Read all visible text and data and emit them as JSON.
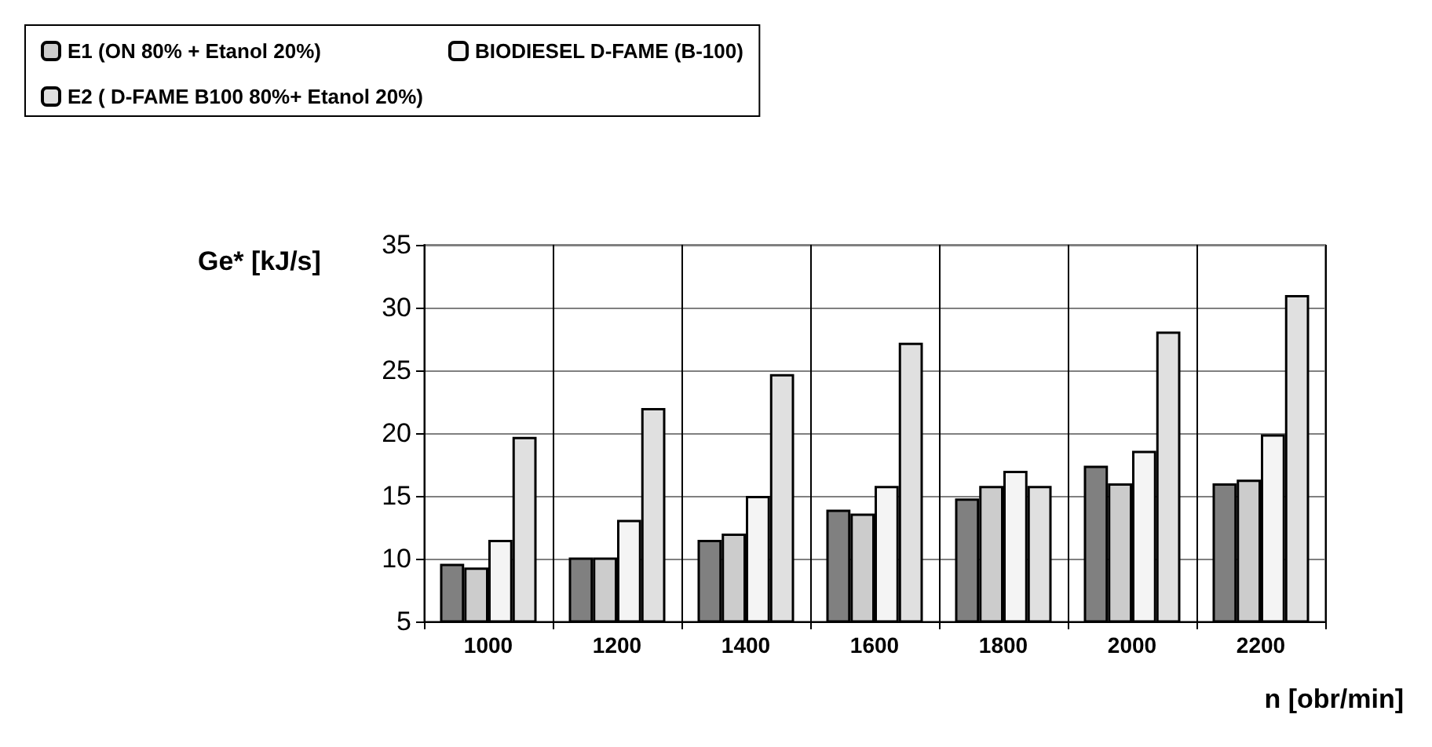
{
  "chart_data": {
    "type": "bar",
    "ylabel": "Ge* [kJ/s]",
    "xlabel": "n [obr/min]",
    "categories": [
      "1000",
      "1200",
      "1400",
      "1600",
      "1800",
      "2000",
      "2200"
    ],
    "series": [
      {
        "color": "#808080",
        "values": [
          9.6,
          10.1,
          11.5,
          13.9,
          14.8,
          17.4,
          16.0
        ]
      },
      {
        "name": "E1 (ON 80% + Etanol 20%)",
        "color": "#cccccc",
        "values": [
          9.3,
          10.1,
          12.0,
          13.6,
          15.8,
          16.0,
          16.3
        ]
      },
      {
        "name": "BIODIESEL D-FAME (B-100)",
        "color": "#f4f4f4",
        "values": [
          11.5,
          13.1,
          15.0,
          15.8,
          17.0,
          18.6,
          19.9
        ]
      },
      {
        "name": "E2 ( D-FAME B100 80%+ Etanol 20%)",
        "color": "#e0e0e0",
        "values": [
          19.7,
          22.0,
          24.7,
          27.2,
          15.8,
          28.1,
          31.0
        ]
      }
    ],
    "ylim": [
      5,
      35
    ],
    "yticks": [
      5,
      10,
      15,
      20,
      25,
      30,
      35
    ],
    "grid": true,
    "legend": "top"
  }
}
